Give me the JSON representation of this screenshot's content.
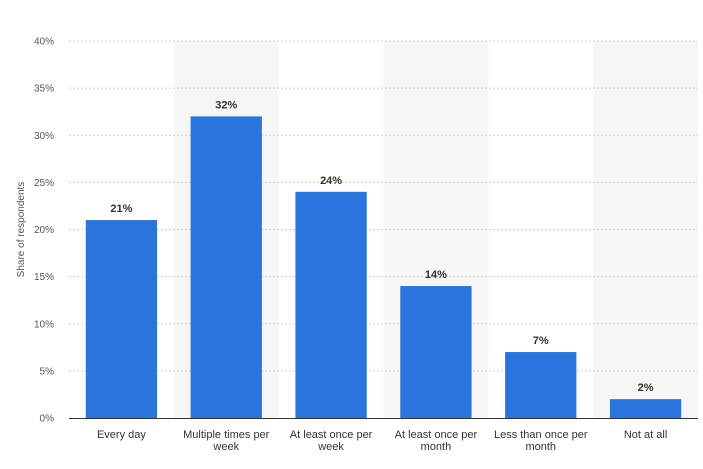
{
  "chart_data": {
    "type": "bar",
    "title": "",
    "xlabel": "",
    "ylabel": "Share of respondents",
    "ylim": [
      0,
      40
    ],
    "yticks": [
      0,
      5,
      10,
      15,
      20,
      25,
      30,
      35,
      40
    ],
    "ytick_suffix": "%",
    "grid": true,
    "categories": [
      [
        "Every day"
      ],
      [
        "Multiple times per",
        "week"
      ],
      [
        "At least once per",
        "week"
      ],
      [
        "At least once per",
        "month"
      ],
      [
        "Less than once per",
        "month"
      ],
      [
        "Not at all"
      ]
    ],
    "values": [
      21,
      32,
      24,
      14,
      7,
      2
    ],
    "value_labels": [
      "21%",
      "32%",
      "24%",
      "14%",
      "7%",
      "2%"
    ],
    "colors": {
      "bar": "#2b74dd",
      "band": "#f6f6f6",
      "grid": "#cfcfcf",
      "axis": "#333333"
    }
  }
}
